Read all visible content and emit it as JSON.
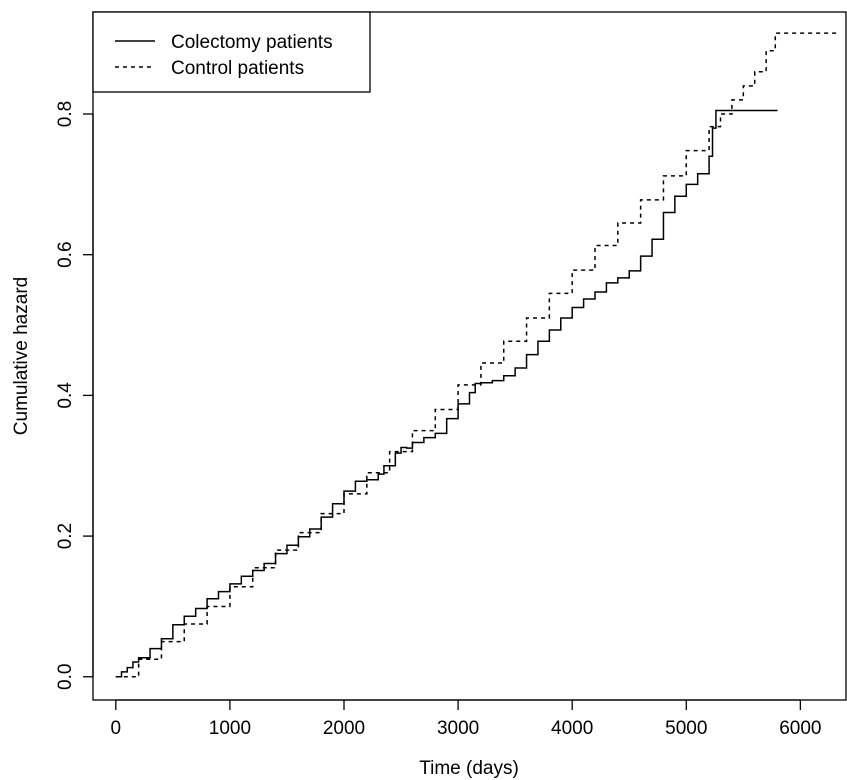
{
  "chart_data": {
    "type": "line",
    "title": "",
    "xlabel": "Time (days)",
    "ylabel": "Cumulative hazard",
    "xlim": [
      -200,
      6400
    ],
    "ylim": [
      -0.033,
      0.945
    ],
    "x_ticks": [
      0,
      1000,
      2000,
      3000,
      4000,
      5000,
      6000
    ],
    "y_ticks": [
      0.0,
      0.2,
      0.4,
      0.6,
      0.8
    ],
    "x_tick_labels": [
      "0",
      "1000",
      "2000",
      "3000",
      "4000",
      "5000",
      "6000"
    ],
    "y_tick_labels": [
      "0.0",
      "0.2",
      "0.4",
      "0.6",
      "0.8"
    ],
    "grid": false,
    "legend_position": "top-left",
    "series": [
      {
        "name": "Colectomy patients",
        "style": "solid",
        "color": "#000000",
        "points": [
          [
            0,
            0.0
          ],
          [
            50,
            0.007
          ],
          [
            100,
            0.013
          ],
          [
            150,
            0.021
          ],
          [
            200,
            0.027
          ],
          [
            300,
            0.04
          ],
          [
            400,
            0.054
          ],
          [
            500,
            0.074
          ],
          [
            600,
            0.086
          ],
          [
            700,
            0.097
          ],
          [
            800,
            0.111
          ],
          [
            900,
            0.121
          ],
          [
            1000,
            0.132
          ],
          [
            1100,
            0.143
          ],
          [
            1200,
            0.151
          ],
          [
            1300,
            0.161
          ],
          [
            1400,
            0.175
          ],
          [
            1500,
            0.187
          ],
          [
            1600,
            0.199
          ],
          [
            1700,
            0.21
          ],
          [
            1800,
            0.227
          ],
          [
            1900,
            0.246
          ],
          [
            2000,
            0.264
          ],
          [
            2100,
            0.278
          ],
          [
            2200,
            0.28
          ],
          [
            2300,
            0.288
          ],
          [
            2350,
            0.3
          ],
          [
            2450,
            0.318
          ],
          [
            2500,
            0.326
          ],
          [
            2550,
            0.325
          ],
          [
            2600,
            0.333
          ],
          [
            2700,
            0.34
          ],
          [
            2800,
            0.346
          ],
          [
            2900,
            0.367
          ],
          [
            3000,
            0.388
          ],
          [
            3100,
            0.404
          ],
          [
            3150,
            0.417
          ],
          [
            3200,
            0.418
          ],
          [
            3300,
            0.421
          ],
          [
            3400,
            0.428
          ],
          [
            3500,
            0.439
          ],
          [
            3600,
            0.458
          ],
          [
            3700,
            0.477
          ],
          [
            3800,
            0.493
          ],
          [
            3900,
            0.51
          ],
          [
            4000,
            0.525
          ],
          [
            4100,
            0.537
          ],
          [
            4200,
            0.547
          ],
          [
            4300,
            0.56
          ],
          [
            4400,
            0.567
          ],
          [
            4500,
            0.577
          ],
          [
            4600,
            0.598
          ],
          [
            4700,
            0.622
          ],
          [
            4800,
            0.66
          ],
          [
            4900,
            0.683
          ],
          [
            5000,
            0.7
          ],
          [
            5100,
            0.715
          ],
          [
            5200,
            0.74
          ],
          [
            5230,
            0.78
          ],
          [
            5260,
            0.805
          ],
          [
            5800,
            0.805
          ]
        ]
      },
      {
        "name": "Control patients",
        "style": "dashed",
        "color": "#000000",
        "points": [
          [
            0,
            0.0
          ],
          [
            200,
            0.025
          ],
          [
            400,
            0.05
          ],
          [
            600,
            0.075
          ],
          [
            800,
            0.1
          ],
          [
            1000,
            0.128
          ],
          [
            1200,
            0.155
          ],
          [
            1400,
            0.18
          ],
          [
            1600,
            0.205
          ],
          [
            1800,
            0.232
          ],
          [
            2000,
            0.26
          ],
          [
            2200,
            0.29
          ],
          [
            2400,
            0.32
          ],
          [
            2600,
            0.35
          ],
          [
            2800,
            0.38
          ],
          [
            3000,
            0.415
          ],
          [
            3200,
            0.446
          ],
          [
            3400,
            0.477
          ],
          [
            3600,
            0.51
          ],
          [
            3800,
            0.545
          ],
          [
            4000,
            0.578
          ],
          [
            4200,
            0.613
          ],
          [
            4400,
            0.645
          ],
          [
            4600,
            0.678
          ],
          [
            4800,
            0.712
          ],
          [
            5000,
            0.748
          ],
          [
            5200,
            0.782
          ],
          [
            5300,
            0.8
          ],
          [
            5400,
            0.82
          ],
          [
            5500,
            0.84
          ],
          [
            5600,
            0.86
          ],
          [
            5700,
            0.89
          ],
          [
            5780,
            0.915
          ],
          [
            6320,
            0.915
          ]
        ]
      }
    ]
  }
}
